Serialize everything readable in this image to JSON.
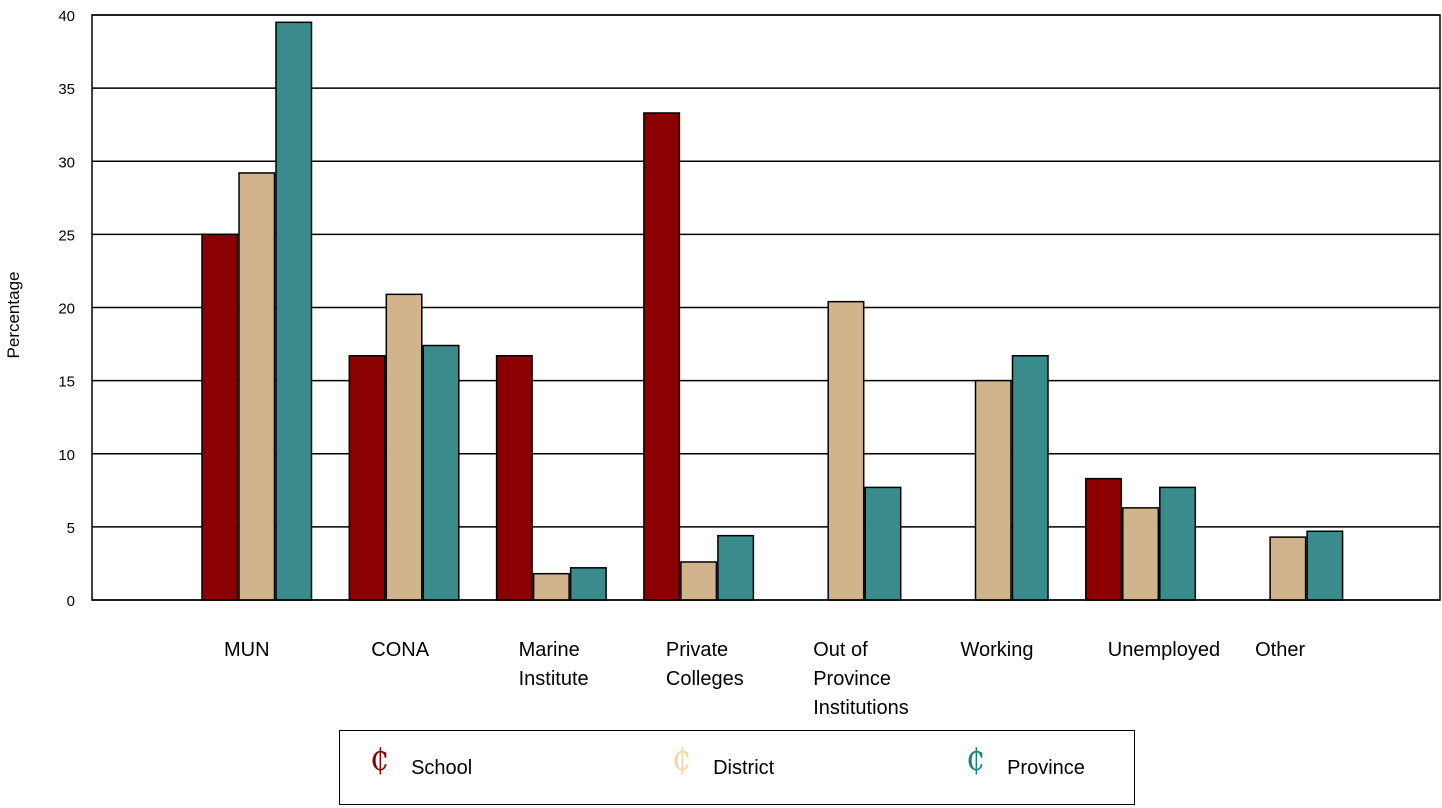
{
  "chart_data": {
    "type": "bar",
    "ylabel": "Percentage",
    "ylim": [
      0,
      40
    ],
    "yticks": [
      0,
      5,
      10,
      15,
      20,
      25,
      30,
      35,
      40
    ],
    "grid": true,
    "legend_position": "bottom",
    "categories": [
      [
        "MUN"
      ],
      [
        "CONA"
      ],
      [
        "Marine",
        "Institute"
      ],
      [
        "Private",
        "Colleges"
      ],
      [
        "Out of",
        "Province",
        "Institutions"
      ],
      [
        "Working"
      ],
      [
        "Unemployed"
      ],
      [
        "Other"
      ]
    ],
    "series": [
      {
        "name": "School",
        "color": "#8b0000",
        "values": [
          25,
          16.7,
          16.7,
          33.3,
          0,
          0,
          8.3,
          0
        ]
      },
      {
        "name": "District",
        "color": "#d2b48c",
        "values": [
          29.2,
          20.9,
          1.8,
          2.6,
          20.4,
          15,
          6.3,
          4.3
        ]
      },
      {
        "name": "Province",
        "color": "#3a8c8c",
        "values": [
          39.5,
          17.4,
          2.2,
          4.4,
          7.7,
          16.7,
          7.7,
          4.7
        ]
      }
    ]
  },
  "legend": {
    "symbol": "₵",
    "items": [
      {
        "label": "School",
        "color": "#8b0000"
      },
      {
        "label": "District",
        "color": "#f5d5a8"
      },
      {
        "label": "Province",
        "color": "#1a8080"
      }
    ]
  }
}
